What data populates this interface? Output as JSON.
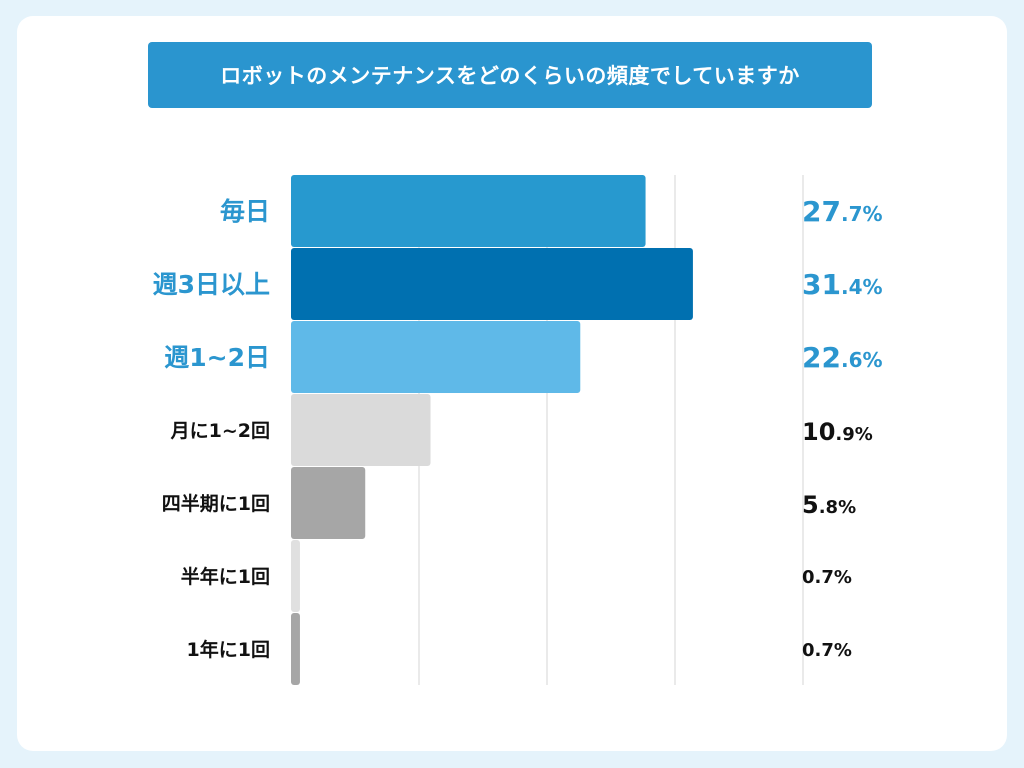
{
  "chart_data": {
    "type": "bar",
    "orientation": "horizontal",
    "title": "ロボットのメンテナンスをどのくらいの頻度でしていますか",
    "categories": [
      "毎日",
      "週3日以上",
      "週1~2日",
      "月に1~2回",
      "四半期に1回",
      "半年に1回",
      "1年に1回"
    ],
    "values": [
      27.7,
      31.4,
      22.6,
      10.9,
      5.8,
      0.7,
      0.7
    ],
    "value_labels": [
      {
        "int": "27",
        "dec": ".7%"
      },
      {
        "int": "31",
        "dec": ".4%"
      },
      {
        "int": "22",
        "dec": ".6%"
      },
      {
        "int": "10",
        "dec": ".9%"
      },
      {
        "int": "5",
        "dec": ".8%"
      },
      {
        "int": "0",
        "dec": ".7%"
      },
      {
        "int": "0",
        "dec": ".7%"
      }
    ],
    "bar_colors": [
      "#2799cf",
      "#0070b0",
      "#5fb9e8",
      "#dadada",
      "#a6a6a6",
      "#e0e0e0",
      "#a6a6a6"
    ],
    "label_colors": [
      "#2b96cf",
      "#2b96cf",
      "#2b96cf",
      "#111111",
      "#111111",
      "#111111",
      "#111111"
    ],
    "xlim": [
      0,
      40
    ],
    "grid_values": [
      10,
      20,
      30,
      40
    ],
    "xlabel": "",
    "ylabel": "",
    "grid": true
  },
  "colors": {
    "page_background": "#e5f3fb",
    "card": "#ffffff",
    "banner": "#2a95cf",
    "grid": "#d6d6d6"
  }
}
